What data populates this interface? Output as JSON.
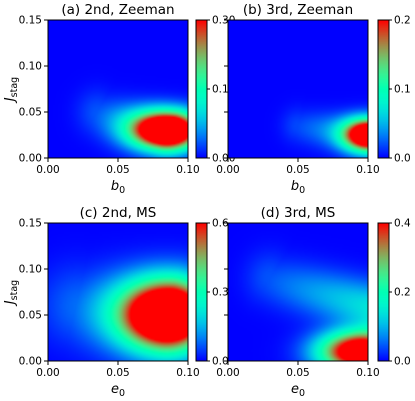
{
  "chart_data": [
    {
      "type": "heatmap",
      "panel": "a",
      "title": "(a) 2nd, Zeeman",
      "xlabel_main": "b",
      "xlabel_sub": "0",
      "ylabel_main": "J",
      "ylabel_sub": "stag",
      "xlim": [
        0,
        0.1
      ],
      "ylim": [
        0,
        0.15
      ],
      "xticks": [
        "0.00",
        "0.05",
        "0.10"
      ],
      "yticks": [
        "0.00",
        "0.05",
        "0.10",
        "0.15"
      ],
      "colorbar": {
        "range": [
          0,
          0.3
        ],
        "ticks": [
          "0.00",
          "0.15",
          "0.30"
        ]
      },
      "peaks": [
        {
          "x": 0.085,
          "y": 0.03,
          "sx": 0.018,
          "sy": 0.014,
          "amp": 0.42
        }
      ],
      "ridge": {
        "from": [
          0.035,
          0.05
        ],
        "to": [
          0.085,
          0.03
        ],
        "width": 0.01,
        "amp": 0.1
      }
    },
    {
      "type": "heatmap",
      "panel": "b",
      "title": "(b) 3rd, Zeeman",
      "xlabel_main": "b",
      "xlabel_sub": "0",
      "ylabel_main": "",
      "ylabel_sub": "",
      "xlim": [
        0,
        0.1
      ],
      "ylim": [
        0,
        0.15
      ],
      "xticks": [
        "0.00",
        "0.05",
        "0.10"
      ],
      "yticks": [],
      "colorbar": {
        "range": [
          0,
          0.2
        ],
        "ticks": [
          "0.0",
          "0.1",
          "0.2"
        ]
      },
      "peaks": [
        {
          "x": 0.1,
          "y": 0.025,
          "sx": 0.012,
          "sy": 0.012,
          "amp": 0.26
        }
      ],
      "ridge": {
        "from": [
          0.05,
          0.035
        ],
        "to": [
          0.1,
          0.025
        ],
        "width": 0.008,
        "amp": 0.06
      }
    },
    {
      "type": "heatmap",
      "panel": "c",
      "title": "(c) 2nd, MS",
      "xlabel_main": "e",
      "xlabel_sub": "0",
      "ylabel_main": "J",
      "ylabel_sub": "stag",
      "xlim": [
        0,
        0.1
      ],
      "ylim": [
        0,
        0.15
      ],
      "xticks": [
        "0.00",
        "0.05",
        "0.10"
      ],
      "yticks": [
        "0.00",
        "0.05",
        "0.10",
        "0.15"
      ],
      "colorbar": {
        "range": [
          0,
          0.6
        ],
        "ticks": [
          "0.0",
          "0.3",
          "0.6"
        ]
      },
      "peaks": [
        {
          "x": 0.085,
          "y": 0.05,
          "sx": 0.022,
          "sy": 0.025,
          "amp": 0.85
        }
      ],
      "ridge": {
        "from": [
          0.02,
          0.06
        ],
        "to": [
          0.085,
          0.05
        ],
        "width": 0.018,
        "amp": 0.25
      }
    },
    {
      "type": "heatmap",
      "panel": "d",
      "title": "(d) 3rd, MS",
      "xlabel_main": "e",
      "xlabel_sub": "0",
      "ylabel_main": "",
      "ylabel_sub": "",
      "xlim": [
        0,
        0.1
      ],
      "ylim": [
        0,
        0.15
      ],
      "xticks": [
        "0.00",
        "0.05",
        "0.10"
      ],
      "yticks": [],
      "colorbar": {
        "range": [
          0,
          0.4
        ],
        "ticks": [
          "0.0",
          "0.2",
          "0.4"
        ]
      },
      "peaks": [
        {
          "x": 0.095,
          "y": 0.01,
          "sx": 0.02,
          "sy": 0.015,
          "amp": 0.55
        }
      ],
      "ridge": {
        "from": [
          0.03,
          0.09
        ],
        "to": [
          0.1,
          0.06
        ],
        "width": 0.012,
        "amp": 0.14
      }
    }
  ]
}
